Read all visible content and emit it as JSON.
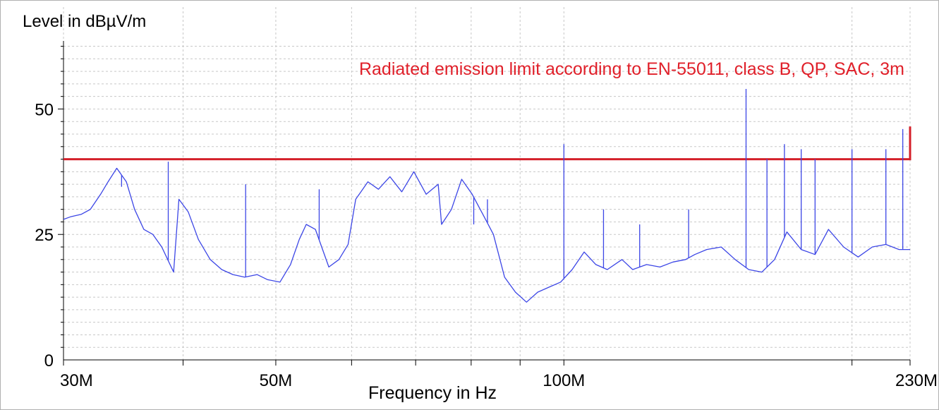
{
  "chart_data": {
    "type": "line",
    "ylabel": "Level in dBµV/m",
    "xlabel": "Frequency in Hz",
    "x_scale": "log",
    "xlim": [
      30000000,
      230000000
    ],
    "ylim": [
      0,
      63
    ],
    "x_tick_labels": [
      {
        "value": 30000000,
        "label": "30M"
      },
      {
        "value": 50000000,
        "label": "50M"
      },
      {
        "value": 100000000,
        "label": "100M"
      },
      {
        "value": 230000000,
        "label": "230M"
      }
    ],
    "x_minor_ticks": [
      40000000,
      60000000,
      70000000,
      80000000,
      90000000,
      200000000
    ],
    "y_tick_labels": [
      {
        "value": 0,
        "label": "0"
      },
      {
        "value": 25,
        "label": "25"
      },
      {
        "value": 50,
        "label": "50"
      }
    ],
    "grid": true,
    "annotation": {
      "text": "Radiated emission limit according to EN-55011, class B, QP, SAC, 3m",
      "color": "#e0202a"
    },
    "limit_line": {
      "color": "#d4202a",
      "x": [
        30000000,
        230000000,
        230000000
      ],
      "y": [
        40,
        40,
        46.5
      ]
    },
    "series": [
      {
        "color": "#3c46e6",
        "x": [
          30000000,
          30500000,
          31300000,
          32000000,
          32800000,
          33400000,
          34100000,
          34900000,
          35600000,
          36400000,
          37200000,
          38000000,
          39100000,
          39600000,
          40500000,
          41500000,
          42700000,
          43900000,
          45100000,
          46400000,
          47800000,
          49000000,
          50500000,
          51800000,
          52900000,
          53800000,
          55000000,
          56800000,
          58200000,
          59500000,
          60600000,
          62400000,
          64000000,
          65800000,
          67700000,
          69700000,
          71800000,
          73900000,
          74500000,
          76300000,
          78200000,
          80200000,
          82300000,
          84400000,
          86700000,
          89000000,
          91400000,
          93900000,
          96500000,
          99200000,
          102000000,
          105000000,
          108000000,
          111000000,
          115000000,
          118000000,
          122000000,
          126000000,
          130000000,
          134000000,
          137000000,
          141000000,
          146000000,
          151000000,
          156000000,
          161000000,
          166000000,
          171000000,
          177000000,
          183000000,
          189000000,
          196000000,
          203000000,
          210000000,
          217000000,
          224000000,
          230000000
        ],
        "y": [
          28,
          28.5,
          29,
          30,
          33,
          35.5,
          38.2,
          35.5,
          30,
          26,
          25,
          22.5,
          17.5,
          32,
          29.5,
          24,
          20,
          18,
          17,
          16.5,
          17,
          16,
          15.5,
          19,
          24,
          27,
          26,
          18.5,
          20,
          23,
          32,
          35.5,
          34,
          36.5,
          33.5,
          37.5,
          33,
          35,
          27,
          30,
          36,
          33,
          29,
          25,
          16.5,
          13.5,
          11.5,
          13.5,
          14.5,
          15.5,
          18,
          21.5,
          19,
          18,
          20,
          18,
          19,
          18.5,
          19.5,
          20,
          21,
          22,
          22.5,
          20,
          18,
          17.5,
          20,
          25.5,
          22,
          21,
          26,
          22.5,
          20.5,
          22.5,
          23,
          22,
          22
        ]
      }
    ],
    "spikes": [
      {
        "x": 34500000,
        "y": 34.5
      },
      {
        "x": 38600000,
        "y": 39.5
      },
      {
        "x": 46500000,
        "y": 35
      },
      {
        "x": 55500000,
        "y": 34
      },
      {
        "x": 80500000,
        "y": 27
      },
      {
        "x": 83200000,
        "y": 32
      },
      {
        "x": 100000000,
        "y": 43
      },
      {
        "x": 110000000,
        "y": 30
      },
      {
        "x": 120000000,
        "y": 27
      },
      {
        "x": 135000000,
        "y": 30
      },
      {
        "x": 155000000,
        "y": 54
      },
      {
        "x": 163000000,
        "y": 40
      },
      {
        "x": 170000000,
        "y": 43
      },
      {
        "x": 177000000,
        "y": 42
      },
      {
        "x": 183000000,
        "y": 40
      },
      {
        "x": 200000000,
        "y": 42
      },
      {
        "x": 217000000,
        "y": 42
      },
      {
        "x": 226000000,
        "y": 46
      }
    ]
  }
}
